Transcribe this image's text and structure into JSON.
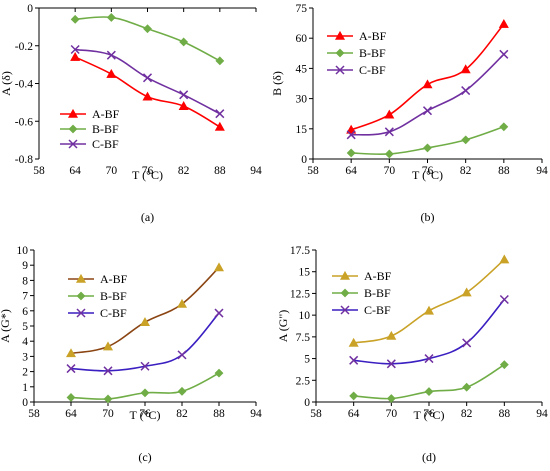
{
  "chart_data": [
    {
      "type": "line",
      "panel_label": "(a)",
      "xlabel": "T (°C)",
      "ylabel": "A (δ)",
      "xlim": [
        58,
        94
      ],
      "ylim": [
        -0.8,
        0
      ],
      "x_ticks": [
        58,
        64,
        70,
        76,
        82,
        88,
        94
      ],
      "y_ticks": [
        0,
        -0.2,
        -0.4,
        -0.6,
        -0.8
      ],
      "x_tick_labels": [
        "58",
        "64",
        "70",
        "76",
        "82",
        "88",
        "94"
      ],
      "y_tick_labels": [
        "0",
        "-0.2",
        "-0.4",
        "-0.6",
        "-0.8"
      ],
      "legend_position": "bottom-left",
      "x": [
        64,
        70,
        76,
        82,
        88
      ],
      "series": [
        {
          "name": "A-BF",
          "color": "#ff0000",
          "marker": "triangle",
          "values": [
            -0.26,
            -0.35,
            -0.47,
            -0.52,
            -0.63
          ]
        },
        {
          "name": "B-BF",
          "color": "#70ad47",
          "marker": "diamond",
          "values": [
            -0.06,
            -0.05,
            -0.11,
            -0.18,
            -0.28
          ]
        },
        {
          "name": "C-BF",
          "color": "#7030a0",
          "marker": "x",
          "values": [
            -0.22,
            -0.25,
            -0.37,
            -0.46,
            -0.56
          ]
        }
      ]
    },
    {
      "type": "line",
      "panel_label": "(b)",
      "xlabel": "T (°C)",
      "ylabel": "B (δ)",
      "xlim": [
        58,
        94
      ],
      "ylim": [
        0,
        75
      ],
      "x_ticks": [
        58,
        64,
        70,
        76,
        82,
        88,
        94
      ],
      "y_ticks": [
        0,
        15,
        30,
        45,
        60,
        75
      ],
      "x_tick_labels": [
        "58",
        "64",
        "70",
        "76",
        "82",
        "88",
        "94"
      ],
      "y_tick_labels": [
        "0",
        "15",
        "30",
        "45",
        "60",
        "75"
      ],
      "legend_position": "top-left",
      "x": [
        64,
        70,
        76,
        82,
        88
      ],
      "series": [
        {
          "name": "A-BF",
          "color": "#ff0000",
          "marker": "triangle",
          "values": [
            14.5,
            22,
            37,
            44.5,
            67
          ]
        },
        {
          "name": "B-BF",
          "color": "#70ad47",
          "marker": "diamond",
          "values": [
            3,
            2.5,
            5.5,
            9.5,
            16
          ]
        },
        {
          "name": "C-BF",
          "color": "#7030a0",
          "marker": "x",
          "values": [
            12,
            13.5,
            24,
            34,
            52
          ]
        }
      ]
    },
    {
      "type": "line",
      "panel_label": "(c)",
      "xlabel": "T (°C)",
      "ylabel": "A (G*)",
      "xlim": [
        58,
        94
      ],
      "ylim": [
        0,
        10
      ],
      "x_ticks": [
        58,
        64,
        70,
        76,
        82,
        88,
        94
      ],
      "y_ticks": [
        0,
        1,
        2,
        3,
        4,
        5,
        6,
        7,
        8,
        9,
        10
      ],
      "x_tick_labels": [
        "58",
        "64",
        "70",
        "76",
        "82",
        "88",
        "94"
      ],
      "y_tick_labels": [
        "0",
        "1",
        "2",
        "3",
        "4",
        "5",
        "6",
        "7",
        "8",
        "9",
        "10"
      ],
      "legend_position": "top-left",
      "x": [
        64,
        70,
        76,
        82,
        88
      ],
      "series": [
        {
          "name": "A-BF",
          "color": "#8b4513",
          "marker": "triangle",
          "marker_color": "#c9a227",
          "values": [
            3.2,
            3.65,
            5.25,
            6.45,
            8.85
          ]
        },
        {
          "name": "B-BF",
          "color": "#70ad47",
          "marker": "diamond",
          "values": [
            0.3,
            0.2,
            0.6,
            0.7,
            1.9
          ]
        },
        {
          "name": "C-BF",
          "color": "#3b1fc1",
          "marker": "x",
          "marker_color": "#7030a0",
          "values": [
            2.2,
            2.05,
            2.35,
            3.1,
            5.85
          ]
        }
      ]
    },
    {
      "type": "line",
      "panel_label": "(d)",
      "xlabel": "T (°C)",
      "ylabel": "A (G\")",
      "xlim": [
        58,
        94
      ],
      "ylim": [
        0,
        17.5
      ],
      "x_ticks": [
        58,
        64,
        70,
        76,
        82,
        88,
        94
      ],
      "y_ticks": [
        0,
        2.5,
        5,
        7.5,
        10,
        12.5,
        15,
        17.5
      ],
      "x_tick_labels": [
        "58",
        "64",
        "70",
        "76",
        "82",
        "88",
        "94"
      ],
      "y_tick_labels": [
        "0",
        "2.5",
        "5",
        "7.5",
        "10",
        "12.5",
        "15",
        "17.5"
      ],
      "legend_position": "top-left",
      "x": [
        64,
        70,
        76,
        82,
        88
      ],
      "series": [
        {
          "name": "A-BF",
          "color": "#c9a227",
          "marker": "triangle",
          "values": [
            6.8,
            7.6,
            10.5,
            12.6,
            16.4
          ]
        },
        {
          "name": "B-BF",
          "color": "#70ad47",
          "marker": "diamond",
          "values": [
            0.7,
            0.4,
            1.2,
            1.7,
            4.3
          ]
        },
        {
          "name": "C-BF",
          "color": "#3b1fc1",
          "marker": "x",
          "marker_color": "#7030a0",
          "values": [
            4.8,
            4.4,
            5.0,
            6.8,
            11.8
          ]
        }
      ]
    }
  ]
}
